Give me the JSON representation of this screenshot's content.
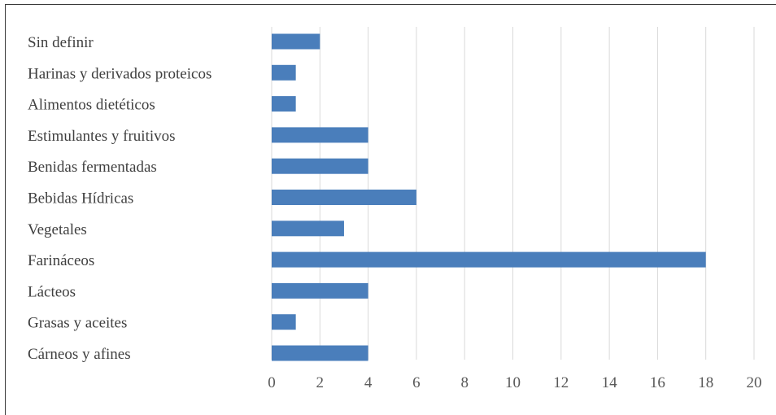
{
  "chart_data": {
    "type": "bar",
    "orientation": "horizontal",
    "categories": [
      "Sin definir",
      "Harinas y derivados proteicos",
      "Alimentos dietéticos",
      "Estimulantes y fruitivos",
      "Benidas fermentadas",
      "Bebidas Hídricas",
      "Vegetales",
      "Farináceos",
      "Lácteos",
      "Grasas y aceites",
      "Cárneos y afines"
    ],
    "values": [
      2,
      1,
      1,
      4,
      4,
      6,
      3,
      18,
      4,
      1,
      4
    ],
    "xlim": [
      0,
      20
    ],
    "xticks": [
      "0",
      "2",
      "4",
      "6",
      "8",
      "10",
      "12",
      "14",
      "16",
      "18",
      "20"
    ],
    "grid": "vertical",
    "bar_color": "#4a7ebb",
    "legend": "none"
  }
}
